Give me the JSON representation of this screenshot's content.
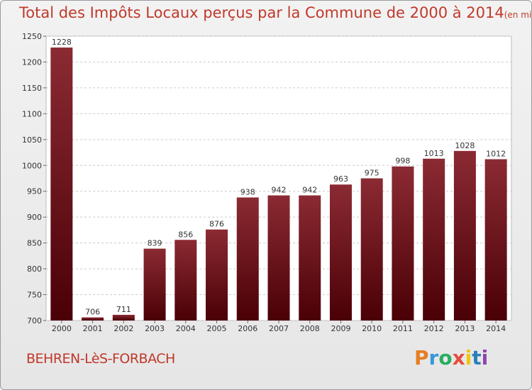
{
  "title": "Total des Impôts Locaux perçus par la Commune de 2000 à 2014",
  "title_unit": "(en milliers d'€)",
  "commune": "BEHREN-LèS-FORBACH",
  "logo": {
    "text": "Proxiti",
    "colors": [
      "#e67e22",
      "#3498db",
      "#27ae60",
      "#e74c3c",
      "#f1c40f",
      "#2980b9",
      "#8e44ad"
    ]
  },
  "colors": {
    "bar_top": "#8b2a33",
    "bar_bottom": "#4a0006",
    "title": "#c0392b"
  },
  "chart_data": {
    "type": "bar",
    "categories": [
      "2000",
      "2001",
      "2002",
      "2003",
      "2004",
      "2005",
      "2006",
      "2007",
      "2008",
      "2009",
      "2010",
      "2011",
      "2012",
      "2013",
      "2014"
    ],
    "values": [
      1228,
      706,
      711,
      839,
      856,
      876,
      938,
      942,
      942,
      963,
      975,
      998,
      1013,
      1028,
      1012
    ],
    "ylim": [
      700,
      1250
    ],
    "yticks": [
      700,
      750,
      800,
      850,
      900,
      950,
      1000,
      1050,
      1100,
      1150,
      1200,
      1250
    ],
    "grid": true,
    "xlabel": "",
    "ylabel": ""
  }
}
